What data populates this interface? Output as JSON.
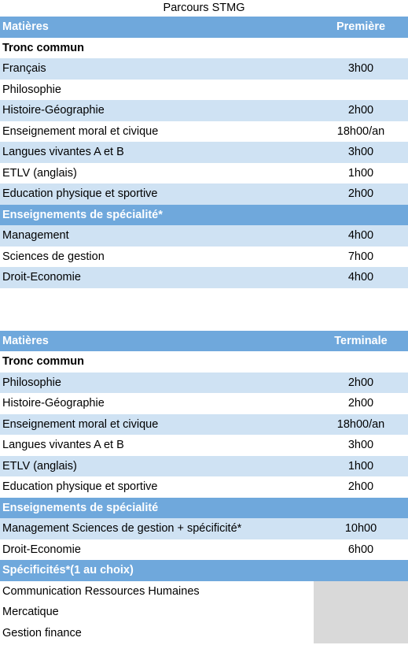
{
  "title": "Parcours STMG",
  "table1": {
    "header": {
      "subject": "Matières",
      "level": "Première"
    },
    "rows": [
      {
        "kind": "section",
        "label": "Tronc commun",
        "value": ""
      },
      {
        "kind": "light",
        "label": "Français",
        "value": "3h00"
      },
      {
        "kind": "white",
        "label": "Philosophie",
        "value": ""
      },
      {
        "kind": "light",
        "label": "Histoire-Géographie",
        "value": "2h00"
      },
      {
        "kind": "white",
        "label": "Enseignement moral et civique",
        "value": "18h00/an"
      },
      {
        "kind": "light",
        "label": "Langues vivantes A et B",
        "value": "3h00"
      },
      {
        "kind": "white",
        "label": "ETLV (anglais)",
        "value": "1h00"
      },
      {
        "kind": "light",
        "label": "Education physique et sportive",
        "value": "2h00"
      },
      {
        "kind": "sub",
        "label": "Enseignements de spécialité*",
        "value": ""
      },
      {
        "kind": "light",
        "label": "Management",
        "value": "4h00"
      },
      {
        "kind": "white",
        "label": "Sciences de gestion",
        "value": "7h00"
      },
      {
        "kind": "light",
        "label": "Droit-Economie",
        "value": "4h00"
      }
    ]
  },
  "table2": {
    "header": {
      "subject": "Matières",
      "level": "Terminale"
    },
    "rows": [
      {
        "kind": "section",
        "label": "Tronc commun",
        "value": ""
      },
      {
        "kind": "light",
        "label": "Philosophie",
        "value": "2h00"
      },
      {
        "kind": "white",
        "label": "Histoire-Géographie",
        "value": "2h00"
      },
      {
        "kind": "light",
        "label": "Enseignement moral et civique",
        "value": "18h00/an"
      },
      {
        "kind": "white",
        "label": "Langues vivantes A et B",
        "value": "3h00"
      },
      {
        "kind": "light",
        "label": "ETLV (anglais)",
        "value": "1h00"
      },
      {
        "kind": "white",
        "label": "Education physique et sportive",
        "value": "2h00"
      },
      {
        "kind": "sub",
        "label": "Enseignements de spécialité",
        "value": ""
      },
      {
        "kind": "light",
        "label": "Management Sciences de gestion + spécificité*",
        "value": "10h00"
      },
      {
        "kind": "white",
        "label": "Droit-Economie",
        "value": "6h00"
      },
      {
        "kind": "sub",
        "label": "Spécificités*(1 au choix)",
        "value": ""
      },
      {
        "kind": "white",
        "label": "Communication Ressources Humaines",
        "value": "",
        "gray": true
      },
      {
        "kind": "white",
        "label": "Mercatique",
        "value": "",
        "gray": true
      },
      {
        "kind": "white",
        "label": "Gestion finance",
        "value": "",
        "gray": true
      }
    ]
  }
}
